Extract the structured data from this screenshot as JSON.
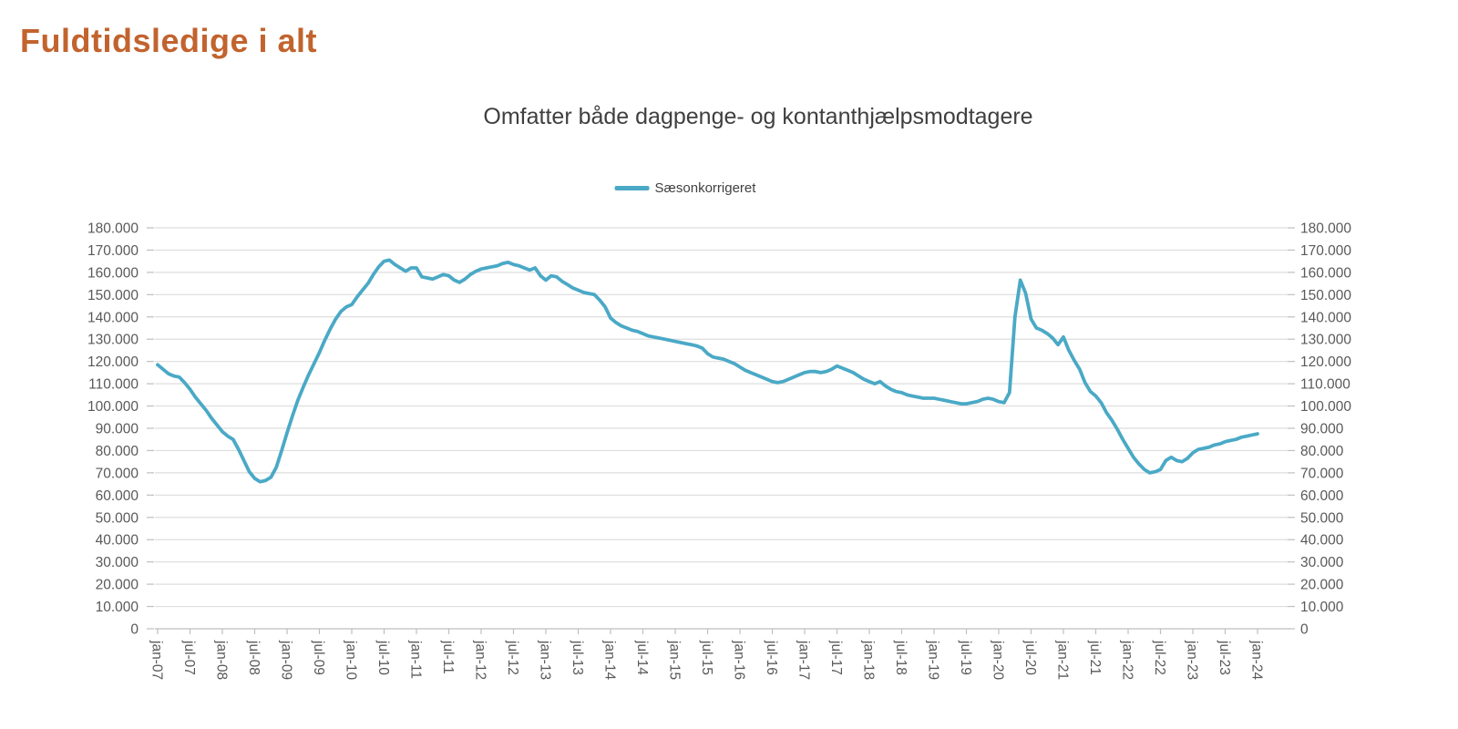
{
  "page": {
    "title": "Fuldtidsledige i alt"
  },
  "chart": {
    "subtitle": "Omfatter både dagpenge- og kontanthjælpsmodtagere",
    "legend_label": "Sæsonkorrigeret"
  },
  "colors": {
    "title": "#C2632E",
    "line": "#4AA9C6",
    "subtitle_text": "#3F3F3F",
    "axis_text": "#595959",
    "gridline": "#DDDDDD",
    "axis_line": "#BFBFBF"
  },
  "chart_data": {
    "type": "line",
    "title": "Omfatter både dagpenge- og kontanthjælpsmodtagere",
    "xlabel": "",
    "ylabel": "",
    "ylim": [
      0,
      180000
    ],
    "grid": "horizontal",
    "legend_position": "top-center",
    "y_axis_sides": [
      "left",
      "right"
    ],
    "x_frequency": "monthly",
    "x_start": "jan-07",
    "x_end": "jan-24",
    "x_tick_labels": [
      "jan-07",
      "jul-07",
      "jan-08",
      "jul-08",
      "jan-09",
      "jul-09",
      "jan-10",
      "jul-10",
      "jan-11",
      "jul-11",
      "jan-12",
      "jul-12",
      "jan-13",
      "jul-13",
      "jan-14",
      "jul-14",
      "jan-15",
      "jul-15",
      "jan-16",
      "jul-16",
      "jan-17",
      "jul-17",
      "jan-18",
      "jul-18",
      "jan-19",
      "jul-19",
      "jan-20",
      "jul-20",
      "jan-21",
      "jul-21",
      "jan-22",
      "jul-22",
      "jan-23",
      "jul-23",
      "jan-24"
    ],
    "x_tick_every_n_months": 6,
    "y_ticks": [
      0,
      10000,
      20000,
      30000,
      40000,
      50000,
      60000,
      70000,
      80000,
      90000,
      100000,
      110000,
      120000,
      130000,
      140000,
      150000,
      160000,
      170000,
      180000
    ],
    "y_tick_labels": [
      "0",
      "10.000",
      "20.000",
      "30.000",
      "40.000",
      "50.000",
      "60.000",
      "70.000",
      "80.000",
      "90.000",
      "100.000",
      "110.000",
      "120.000",
      "130.000",
      "140.000",
      "150.000",
      "160.000",
      "170.000",
      "180.000"
    ],
    "series": [
      {
        "name": "Sæsonkorrigeret",
        "color": "#4AA9C6",
        "values": [
          118500,
          116500,
          114500,
          113500,
          113000,
          110500,
          107500,
          104000,
          101000,
          98000,
          94500,
          91500,
          88500,
          86500,
          85000,
          80500,
          75500,
          70500,
          67500,
          66000,
          66500,
          68000,
          72500,
          80000,
          88000,
          95500,
          102500,
          108500,
          114000,
          119000,
          124000,
          129500,
          134500,
          139000,
          142500,
          144500,
          145500,
          149000,
          152000,
          155000,
          159000,
          162500,
          165000,
          165500,
          163500,
          162000,
          160500,
          162000,
          162000,
          158000,
          157500,
          157000,
          158000,
          159000,
          158500,
          156500,
          155500,
          157000,
          159000,
          160500,
          161500,
          162000,
          162500,
          163000,
          164000,
          164500,
          163500,
          163000,
          162000,
          161000,
          162000,
          158500,
          156500,
          158500,
          158000,
          156000,
          154500,
          153000,
          152000,
          151000,
          150500,
          150000,
          147500,
          144500,
          139500,
          137500,
          136000,
          135000,
          134000,
          133500,
          132500,
          131500,
          131000,
          130500,
          130000,
          129500,
          129000,
          128500,
          128000,
          127500,
          127000,
          126000,
          123500,
          122000,
          121500,
          121000,
          120000,
          119000,
          117500,
          116000,
          115000,
          114000,
          113000,
          112000,
          111000,
          110500,
          111000,
          112000,
          113000,
          114000,
          115000,
          115500,
          115500,
          115000,
          115500,
          116500,
          118000,
          117000,
          116000,
          115000,
          113500,
          112000,
          111000,
          110000,
          111000,
          109000,
          107500,
          106500,
          106000,
          105000,
          104500,
          104000,
          103500,
          103500,
          103500,
          103000,
          102500,
          102000,
          101500,
          101000,
          101000,
          101500,
          102000,
          103000,
          103500,
          103000,
          102000,
          101500,
          106000,
          140000,
          156500,
          150500,
          139000,
          135000,
          134000,
          132500,
          130500,
          127500,
          131000,
          125000,
          120500,
          116500,
          110500,
          106500,
          104500,
          101500,
          97000,
          93500,
          89500,
          85000,
          81000,
          77000,
          74000,
          71500,
          70000,
          70500,
          71500,
          75500,
          77000,
          75500,
          75000,
          76500,
          79000,
          80500,
          81000,
          81500,
          82500,
          83000,
          84000,
          84500,
          85000,
          86000,
          86500,
          87000,
          87500
        ]
      }
    ]
  }
}
